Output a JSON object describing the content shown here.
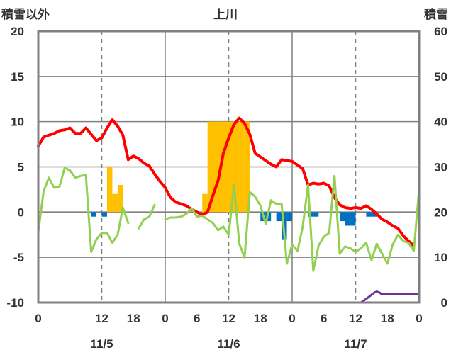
{
  "chart_data": {
    "type": "line",
    "title": "上川",
    "ylabel_left": "積雪以外",
    "ylabel_right": "積雪",
    "left_axis": {
      "min": -10,
      "max": 20,
      "ticks": [
        -10,
        -5,
        0,
        5,
        10,
        15,
        20
      ]
    },
    "right_axis": {
      "min": 0,
      "max": 60,
      "ticks": [
        0,
        10,
        20,
        30,
        40,
        50,
        60
      ]
    },
    "x_hour_labels": [
      "0",
      "12",
      "18",
      "0",
      "6",
      "12",
      "18",
      "0",
      "6",
      "12",
      "18",
      "0"
    ],
    "day_labels": [
      "11/5",
      "11/6",
      "11/7"
    ],
    "x_range_hours": [
      0,
      72
    ],
    "grid": {
      "solid_vertical_at_hours": [
        24,
        48
      ],
      "dashed_vertical_at_hours": [
        12,
        36,
        60
      ],
      "horizontal_at_left_values": [
        -5,
        0,
        5,
        10,
        15
      ]
    },
    "colors": {
      "temperature": "#ff0000",
      "green_series": "#92d050",
      "purple_series": "#7030a0",
      "positive_bars": "#ffc000",
      "negative_bars": "#0070c0",
      "frame": "#808080"
    },
    "series": [
      {
        "axis": "left",
        "color": "#ff0000",
        "points": [
          [
            0,
            7.3
          ],
          [
            1,
            8.3
          ],
          [
            2,
            8.5
          ],
          [
            3,
            8.7
          ],
          [
            4,
            9.0
          ],
          [
            5,
            9.1
          ],
          [
            6,
            9.3
          ],
          [
            7,
            8.7
          ],
          [
            8,
            8.7
          ],
          [
            9,
            9.3
          ],
          [
            10,
            8.6
          ],
          [
            11,
            7.9
          ],
          [
            12,
            8.2
          ],
          [
            13,
            9.3
          ],
          [
            14,
            10.2
          ],
          [
            15,
            9.5
          ],
          [
            16,
            8.5
          ],
          [
            17,
            5.8
          ],
          [
            18,
            6.2
          ],
          [
            19,
            5.9
          ],
          [
            20,
            5.4
          ],
          [
            21,
            5.1
          ],
          [
            22,
            4.2
          ],
          [
            23,
            3.4
          ],
          [
            24,
            2.7
          ],
          [
            25,
            1.6
          ],
          [
            26,
            1.1
          ],
          [
            27,
            0.9
          ],
          [
            28,
            0.7
          ],
          [
            29,
            0.3
          ],
          [
            30,
            0.0
          ],
          [
            31,
            -0.3
          ],
          [
            32,
            0.0
          ],
          [
            33,
            1.8
          ],
          [
            34,
            3.5
          ],
          [
            35,
            6.5
          ],
          [
            36,
            8.2
          ],
          [
            37,
            9.7
          ],
          [
            38,
            10.4
          ],
          [
            39,
            9.8
          ],
          [
            40,
            8.6
          ],
          [
            41,
            6.5
          ],
          [
            42,
            6.1
          ],
          [
            43,
            5.7
          ],
          [
            44,
            5.3
          ],
          [
            45,
            5.0
          ],
          [
            46,
            5.8
          ],
          [
            47,
            5.7
          ],
          [
            48,
            5.6
          ],
          [
            49,
            5.2
          ],
          [
            50,
            4.8
          ],
          [
            51,
            3.0
          ],
          [
            52,
            3.2
          ],
          [
            53,
            3.1
          ],
          [
            54,
            3.2
          ],
          [
            55,
            2.9
          ],
          [
            56,
            1.6
          ],
          [
            57,
            0.8
          ],
          [
            58,
            0.5
          ],
          [
            59,
            0.4
          ],
          [
            60,
            0.5
          ],
          [
            61,
            0.4
          ],
          [
            62,
            0.7
          ],
          [
            63,
            0.3
          ],
          [
            64,
            -0.2
          ],
          [
            65,
            -0.8
          ],
          [
            66,
            -1.1
          ],
          [
            67,
            -1.5
          ],
          [
            68,
            -1.8
          ],
          [
            69,
            -2.6
          ],
          [
            70,
            -3.2
          ],
          [
            71,
            -3.7
          ]
        ]
      },
      {
        "axis": "left",
        "color": "#92d050",
        "segments": [
          [
            [
              0,
              -2.2
            ],
            [
              1,
              2.3
            ],
            [
              2,
              3.8
            ],
            [
              3,
              2.7
            ],
            [
              4,
              2.8
            ],
            [
              5,
              4.9
            ],
            [
              6,
              4.6
            ],
            [
              7,
              3.8
            ],
            [
              8,
              4.0
            ],
            [
              9,
              4.1
            ],
            [
              10,
              -4.4
            ],
            [
              11,
              -3.0
            ],
            [
              12,
              -2.3
            ],
            [
              13,
              -2.3
            ],
            [
              14,
              -3.4
            ],
            [
              15,
              -2.5
            ],
            [
              16,
              0.5
            ],
            [
              17,
              -1.2
            ]
          ],
          [
            [
              19,
              -1.8
            ],
            [
              20,
              -0.8
            ],
            [
              21,
              -0.5
            ],
            [
              22,
              0.8
            ]
          ],
          [
            [
              24,
              -0.8
            ],
            [
              25,
              -0.6
            ],
            [
              26,
              -0.6
            ],
            [
              27,
              -0.5
            ],
            [
              28,
              -0.2
            ],
            [
              29,
              0.4
            ],
            [
              30,
              -0.5
            ],
            [
              31,
              -0.4
            ],
            [
              32,
              -0.8
            ],
            [
              33,
              -1.2
            ],
            [
              34,
              -2.0
            ],
            [
              35,
              -1.6
            ],
            [
              36,
              -2.5
            ],
            [
              37,
              3.0
            ],
            [
              38,
              -3.5
            ],
            [
              39,
              -5.0
            ],
            [
              40,
              2.2
            ],
            [
              41,
              1.7
            ],
            [
              42,
              0.7
            ],
            [
              43,
              -1.3
            ],
            [
              44,
              1.3
            ],
            [
              45,
              0.9
            ],
            [
              46,
              0.9
            ],
            [
              47,
              -5.7
            ],
            [
              48,
              -3.6
            ],
            [
              49,
              -4.3
            ],
            [
              50,
              -1.6
            ],
            [
              51,
              3.0
            ],
            [
              52,
              -6.5
            ],
            [
              53,
              -3.7
            ],
            [
              54,
              -2.7
            ],
            [
              55,
              -2.3
            ],
            [
              56,
              4.0
            ],
            [
              57,
              -4.6
            ],
            [
              58,
              -3.8
            ],
            [
              59,
              -4.0
            ],
            [
              60,
              -4.4
            ],
            [
              61,
              -4.0
            ],
            [
              62,
              -3.4
            ],
            [
              63,
              -5.3
            ],
            [
              64,
              -3.5
            ],
            [
              65,
              -4.6
            ],
            [
              66,
              -5.7
            ],
            [
              67,
              -3.6
            ],
            [
              68,
              -2.5
            ],
            [
              69,
              -3.2
            ],
            [
              70,
              -3.4
            ],
            [
              71,
              -4.3
            ],
            [
              72,
              2.5
            ]
          ]
        ]
      },
      {
        "axis": "right",
        "color": "#7030a0",
        "points": [
          [
            0,
            0
          ],
          [
            12,
            0
          ],
          [
            24,
            0
          ],
          [
            36,
            0
          ],
          [
            48,
            0
          ],
          [
            60,
            0
          ],
          [
            61,
            0
          ],
          [
            62,
            0.8
          ],
          [
            63,
            1.7
          ],
          [
            64,
            2.6
          ],
          [
            65,
            1.8
          ],
          [
            66,
            1.8
          ],
          [
            67,
            1.8
          ],
          [
            68,
            1.8
          ],
          [
            69,
            1.8
          ],
          [
            70,
            1.8
          ],
          [
            71,
            1.8
          ],
          [
            72,
            1.8
          ]
        ]
      }
    ],
    "bars": {
      "axis": "left",
      "positive": [
        [
          13.5,
          5.0
        ],
        [
          14.5,
          2.0
        ],
        [
          15.5,
          3.0
        ],
        [
          31.5,
          2.0
        ],
        [
          32.5,
          10.0
        ],
        [
          33.5,
          10.0
        ],
        [
          34.5,
          10.0
        ],
        [
          35.5,
          10.0
        ],
        [
          36.5,
          10.0
        ],
        [
          37.5,
          10.0
        ],
        [
          38.5,
          10.0
        ],
        [
          39.5,
          10.0
        ]
      ],
      "negative": [
        [
          10.5,
          -0.5
        ],
        [
          12.5,
          -0.5
        ],
        [
          42.5,
          -1.0
        ],
        [
          43.5,
          -1.0
        ],
        [
          45.5,
          -1.0
        ],
        [
          46.5,
          -3.0
        ],
        [
          47.5,
          -1.0
        ],
        [
          51.5,
          -0.5
        ],
        [
          52.5,
          -0.5
        ],
        [
          57.5,
          -1.0
        ],
        [
          58.5,
          -1.5
        ],
        [
          59.5,
          -1.5
        ],
        [
          62.5,
          -0.5
        ],
        [
          63.5,
          -0.5
        ]
      ]
    }
  }
}
